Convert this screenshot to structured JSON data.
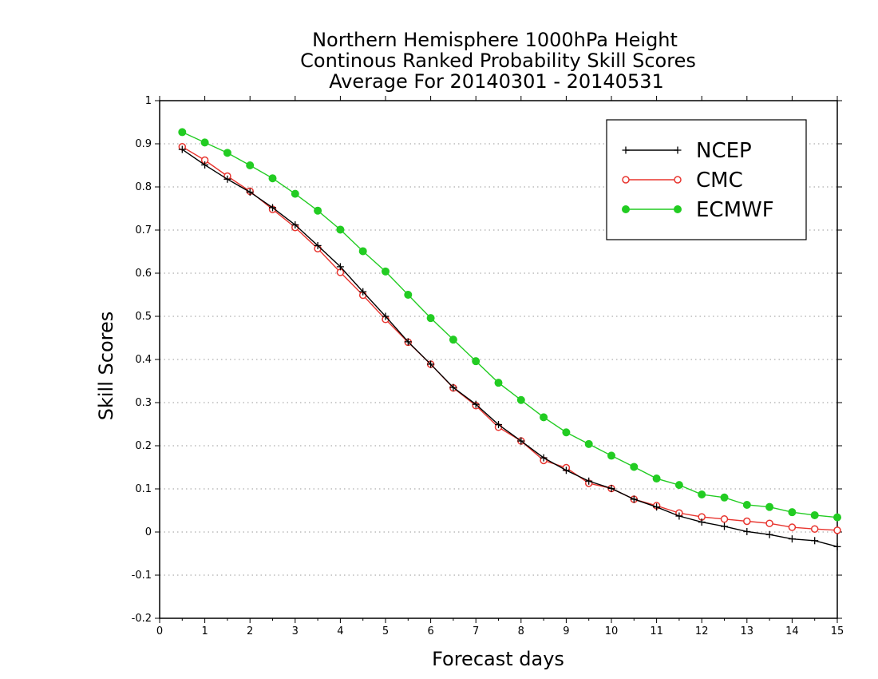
{
  "chart_data": {
    "type": "line",
    "title": [
      "Northern Hemisphere 1000hPa Height",
      "Continous Ranked Probability Skill Scores",
      "Average For 20140301 - 20140531"
    ],
    "xlabel": "Forecast days",
    "ylabel": "Skill Scores",
    "xlim": [
      0,
      15
    ],
    "ylim": [
      -0.2,
      1
    ],
    "x_ticks": [
      "0",
      "1",
      "2",
      "3",
      "4",
      "5",
      "6",
      "7",
      "8",
      "9",
      "10",
      "11",
      "12",
      "13",
      "14",
      "15"
    ],
    "y_ticks": [
      "-0.2",
      "-0.1",
      "0",
      "0.1",
      "0.2",
      "0.3",
      "0.4",
      "0.5",
      "0.6",
      "0.7",
      "0.8",
      "0.9",
      "1"
    ],
    "grid": "horizontal dotted",
    "legend_position": "top-right",
    "x": [
      0.5,
      1,
      1.5,
      2,
      2.5,
      3,
      3.5,
      4,
      4.5,
      5,
      5.5,
      6,
      6.5,
      7,
      7.5,
      8,
      8.5,
      9,
      9.5,
      10,
      10.5,
      11,
      11.5,
      12,
      12.5,
      13,
      13.5,
      14,
      14.5,
      15
    ],
    "series": [
      {
        "name": "NCEP",
        "color": "#000000",
        "marker": "plus",
        "values": [
          0.887,
          0.851,
          0.818,
          0.788,
          0.752,
          0.712,
          0.664,
          0.615,
          0.557,
          0.5,
          0.441,
          0.389,
          0.335,
          0.296,
          0.249,
          0.211,
          0.172,
          0.143,
          0.118,
          0.101,
          0.076,
          0.058,
          0.037,
          0.023,
          0.013,
          0.001,
          -0.006,
          -0.016,
          -0.02,
          -0.034
        ]
      },
      {
        "name": "CMC",
        "color": "#e8352f",
        "marker": "open-circle",
        "values": [
          0.893,
          0.862,
          0.825,
          0.79,
          0.748,
          0.706,
          0.657,
          0.602,
          0.549,
          0.493,
          0.44,
          0.389,
          0.334,
          0.293,
          0.243,
          0.211,
          0.166,
          0.149,
          0.113,
          0.101,
          0.076,
          0.061,
          0.044,
          0.035,
          0.03,
          0.025,
          0.02,
          0.011,
          0.007,
          0.004
        ]
      },
      {
        "name": "ECMWF",
        "color": "#22cc22",
        "marker": "filled-circle",
        "values": [
          0.927,
          0.903,
          0.879,
          0.85,
          0.82,
          0.784,
          0.745,
          0.701,
          0.651,
          0.604,
          0.55,
          0.496,
          0.446,
          0.396,
          0.346,
          0.306,
          0.266,
          0.231,
          0.204,
          0.177,
          0.151,
          0.124,
          0.109,
          0.087,
          0.08,
          0.063,
          0.058,
          0.046,
          0.039,
          0.034
        ]
      }
    ]
  }
}
